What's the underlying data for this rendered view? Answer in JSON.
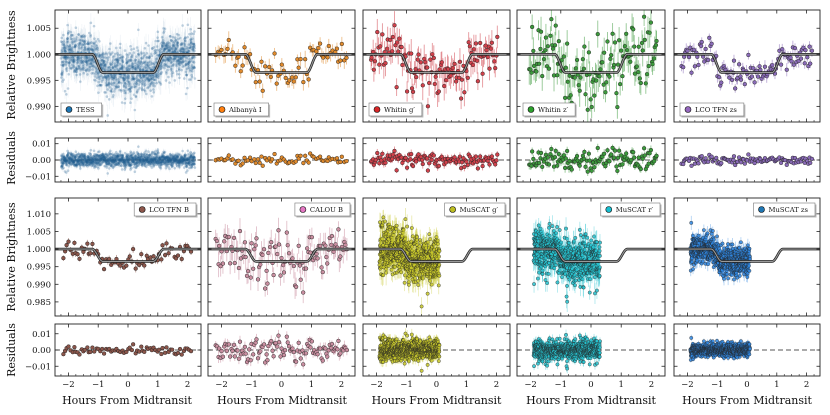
{
  "chart_data": {
    "type": "scatter",
    "title": "",
    "xlabel": "Hours From Midtransit",
    "ylabel_top": "Relative Brightness",
    "ylabel_resid": "Residuals",
    "x_ticks": [
      -2,
      -1,
      0,
      1,
      2
    ],
    "x_tick_labels": [
      "−2",
      "−1",
      "0",
      "1",
      "2"
    ],
    "row1": {
      "ylim": [
        0.987,
        1.0085
      ],
      "yticks": [
        0.99,
        0.995,
        1.0,
        1.005
      ],
      "ytick_labels": [
        "0.990",
        "0.995",
        "1.000",
        "1.005"
      ]
    },
    "row1_resid": {
      "ylim": [
        -0.0135,
        0.0135
      ],
      "yticks": [
        -0.01,
        0.0,
        0.01
      ],
      "ytick_labels": [
        "−0.01",
        "0.00",
        "0.01"
      ]
    },
    "row2": {
      "ylim": [
        0.981,
        1.0145
      ],
      "yticks": [
        0.985,
        0.99,
        0.995,
        1.0,
        1.005,
        1.01
      ],
      "ytick_labels": [
        "0.985",
        "0.990",
        "0.995",
        "1.000",
        "1.005",
        "1.010"
      ]
    },
    "row2_resid": {
      "ylim": [
        -0.016,
        0.016
      ],
      "yticks": [
        -0.01,
        0.0,
        0.01
      ],
      "ytick_labels": [
        "−0.01",
        "0.00",
        "0.01"
      ]
    },
    "transit_model": {
      "depth": 0.0035,
      "t1": -1.2,
      "t2": -0.85,
      "t3": 0.85,
      "t4": 1.2
    },
    "row1_datasets": [
      {
        "label": "TESS",
        "color": "#1f5f8f",
        "legend_color": "#1f77b4",
        "n": 1400,
        "x_range": [
          -2.25,
          2.25
        ],
        "scatter": 0.0022,
        "err": 0.0018,
        "style": "dense"
      },
      {
        "label": "Albanyà I",
        "color": "#e08a2c",
        "legend_color": "#ff7f0e",
        "n": 70,
        "x_range": [
          -2.2,
          2.2
        ],
        "scatter": 0.0017,
        "err": 0.0013,
        "style": "points"
      },
      {
        "label": "Whitin g′",
        "color": "#d1414b",
        "legend_color": "#d62728",
        "n": 120,
        "x_range": [
          -2.2,
          2.05
        ],
        "scatter": 0.0028,
        "err": 0.0022,
        "style": "points"
      },
      {
        "label": "Whitin z′",
        "color": "#3c9a3c",
        "legend_color": "#2ca02c",
        "n": 130,
        "x_range": [
          -2.05,
          2.2
        ],
        "scatter": 0.003,
        "err": 0.0024,
        "style": "points"
      },
      {
        "label": "LCO TFN zs",
        "color": "#8a6bb8",
        "legend_color": "#9467bd",
        "n": 110,
        "x_range": [
          -2.2,
          2.2
        ],
        "scatter": 0.0013,
        "err": 0.001,
        "style": "points"
      }
    ],
    "row2_datasets": [
      {
        "label": "LCO TFN B",
        "color": "#8c564b",
        "legend_color": "#8c564b",
        "n": 70,
        "x_range": [
          -2.2,
          2.15
        ],
        "scatter": 0.0012,
        "err": 0.0009,
        "style": "points"
      },
      {
        "label": "CALOU B",
        "color": "#c98ea0",
        "legend_color": "#e377c2",
        "n": 110,
        "x_range": [
          -2.2,
          2.2
        ],
        "scatter": 0.0032,
        "err": 0.003,
        "style": "points"
      },
      {
        "label": "MuSCAT g′",
        "color": "#c7c72a",
        "legend_color": "#bcbd22",
        "n": 650,
        "x_range": [
          -1.9,
          0.1
        ],
        "scatter": 0.0033,
        "err": 0.0028,
        "style": "cloud"
      },
      {
        "label": "MuSCAT r′",
        "color": "#26c2cf",
        "legend_color": "#17becf",
        "n": 650,
        "x_range": [
          -1.9,
          0.3
        ],
        "scatter": 0.0032,
        "err": 0.0026,
        "style": "cloud"
      },
      {
        "label": "MuSCAT zs",
        "color": "#2f86e0",
        "legend_color": "#1f77b4",
        "n": 650,
        "x_range": [
          -1.9,
          0.1
        ],
        "scatter": 0.0021,
        "err": 0.0016,
        "style": "cloud"
      }
    ]
  }
}
